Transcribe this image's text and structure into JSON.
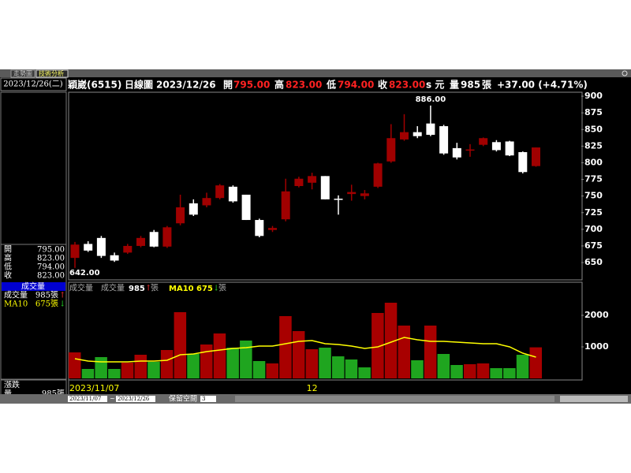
{
  "window": {
    "tabs": [
      "走勢圖",
      "技術分析"
    ]
  },
  "side_panel": {
    "date": "2023/12/26(二)",
    "quote": [
      [
        "開",
        "795.00"
      ],
      [
        "高",
        "823.00"
      ],
      [
        "低",
        "794.00"
      ],
      [
        "收",
        "823.00"
      ]
    ],
    "volume_title": "成交量",
    "volume_row": {
      "label": "成交量",
      "value": "985張",
      "arrow": "↑"
    },
    "ma_row": {
      "label": "MA10",
      "value": "675張",
      "arrow": "↓"
    },
    "footer": {
      "change_label": "漲跌",
      "volume_label": "量",
      "volume_value": "985張"
    }
  },
  "header": {
    "stock": "穎崴(6515)",
    "period": "日線圖",
    "date": "2023/12/26",
    "open_label": "開",
    "open": "795.00",
    "high_label": "高",
    "high": "823.00",
    "low_label": "低",
    "low": "794.00",
    "close_label": "收",
    "close": "823.00",
    "unit": "s 元",
    "volume_label": "量",
    "volume": "985",
    "volume_unit": "張",
    "change": "+37.00 (+4.71%)"
  },
  "volume_header": {
    "panel_title": "成交量",
    "volume": "985",
    "volume_arrow": "↑",
    "unit": "張",
    "ma_value": "675",
    "ma_arrow": "↓"
  },
  "toolbar": {
    "start": "2023/11/07",
    "separator": "~",
    "end": "2023/12/26",
    "space_label": "保留空間",
    "space": "3"
  },
  "chart_data": [
    {
      "type": "candlestick",
      "open": [
        657,
        678,
        687,
        661,
        665,
        675,
        696,
        674,
        709,
        739,
        736,
        747,
        764,
        752,
        714,
        699,
        715,
        765,
        770,
        780,
        746,
        753,
        750,
        764,
        802,
        835,
        846,
        859,
        855,
        822,
        819,
        827,
        831,
        832,
        816,
        795
      ],
      "high": [
        681,
        682,
        690,
        665,
        678,
        690,
        699,
        705,
        752,
        745,
        755,
        768,
        766,
        752,
        716,
        705,
        776,
        779,
        785,
        780,
        751,
        767,
        759,
        800,
        858,
        873,
        855,
        886,
        857,
        830,
        828,
        838,
        834,
        833,
        817,
        823
      ],
      "low": [
        642,
        666,
        657,
        651,
        663,
        673,
        673,
        672,
        706,
        720,
        733,
        745,
        740,
        714,
        688,
        696,
        712,
        763,
        760,
        745,
        722,
        743,
        745,
        762,
        800,
        833,
        837,
        840,
        812,
        805,
        809,
        825,
        817,
        810,
        784,
        794
      ],
      "close": [
        677,
        668,
        660,
        653,
        675,
        687,
        674,
        703,
        733,
        722,
        747,
        766,
        742,
        714,
        690,
        702,
        757,
        776,
        780,
        745,
        745,
        756,
        754,
        799,
        837,
        846,
        840,
        842,
        814,
        808,
        820,
        837,
        819,
        811,
        786,
        823
      ],
      "ylim": [
        624,
        906
      ],
      "yticks": [
        650,
        675,
        700,
        725,
        750,
        775,
        800,
        825,
        850,
        875,
        900
      ],
      "up_color": "#a00000",
      "down_color": "#ffffff",
      "annotations": [
        {
          "value": 886,
          "label": "886.00"
        },
        {
          "value": 642,
          "label": "642.00"
        }
      ]
    },
    {
      "type": "bar",
      "categories": [
        "2023/11/07",
        null,
        null,
        null,
        null,
        null,
        null,
        null,
        null,
        null,
        null,
        null,
        null,
        null,
        null,
        null,
        null,
        null,
        "12",
        null,
        null,
        null,
        null,
        null,
        null,
        null,
        null,
        null,
        null,
        null,
        null,
        null,
        null,
        null,
        null,
        null
      ],
      "series": [
        {
          "name": "成交量",
          "values": [
            825,
            300,
            675,
            300,
            500,
            750,
            525,
            900,
            2100,
            775,
            1075,
            1425,
            975,
            1200,
            550,
            475,
            1975,
            1500,
            925,
            975,
            700,
            600,
            350,
            2075,
            2400,
            1675,
            575,
            1675,
            775,
            425,
            450,
            475,
            325,
            325,
            750,
            985
          ],
          "colors": [
            "#a80000",
            "#1fa51f",
            "#1fa51f",
            "#1fa51f",
            "#a80000",
            "#a80000",
            "#1fa51f",
            "#a80000",
            "#a80000",
            "#1fa51f",
            "#a80000",
            "#a80000",
            "#1fa51f",
            "#1fa51f",
            "#1fa51f",
            "#a80000",
            "#a80000",
            "#a80000",
            "#a80000",
            "#1fa51f",
            "#1fa51f",
            "#1fa51f",
            "#1fa51f",
            "#a80000",
            "#a80000",
            "#a80000",
            "#1fa51f",
            "#a80000",
            "#1fa51f",
            "#1fa51f",
            "#a80000",
            "#a80000",
            "#1fa51f",
            "#1fa51f",
            "#1fa51f",
            "#a80000"
          ]
        },
        {
          "name": "MA10",
          "type": "line",
          "color": "#ffff00",
          "values": [
            625,
            550,
            525,
            525,
            525,
            550,
            550,
            575,
            750,
            775,
            850,
            900,
            950,
            975,
            1025,
            1025,
            1100,
            1175,
            1200,
            1100,
            1075,
            1025,
            950,
            1000,
            1150,
            1300,
            1225,
            1175,
            1175,
            1150,
            1125,
            1100,
            1100,
            1000,
            800,
            675
          ]
        }
      ],
      "ylim": [
        0,
        3000
      ],
      "yticks": [
        1000,
        2000
      ]
    }
  ]
}
